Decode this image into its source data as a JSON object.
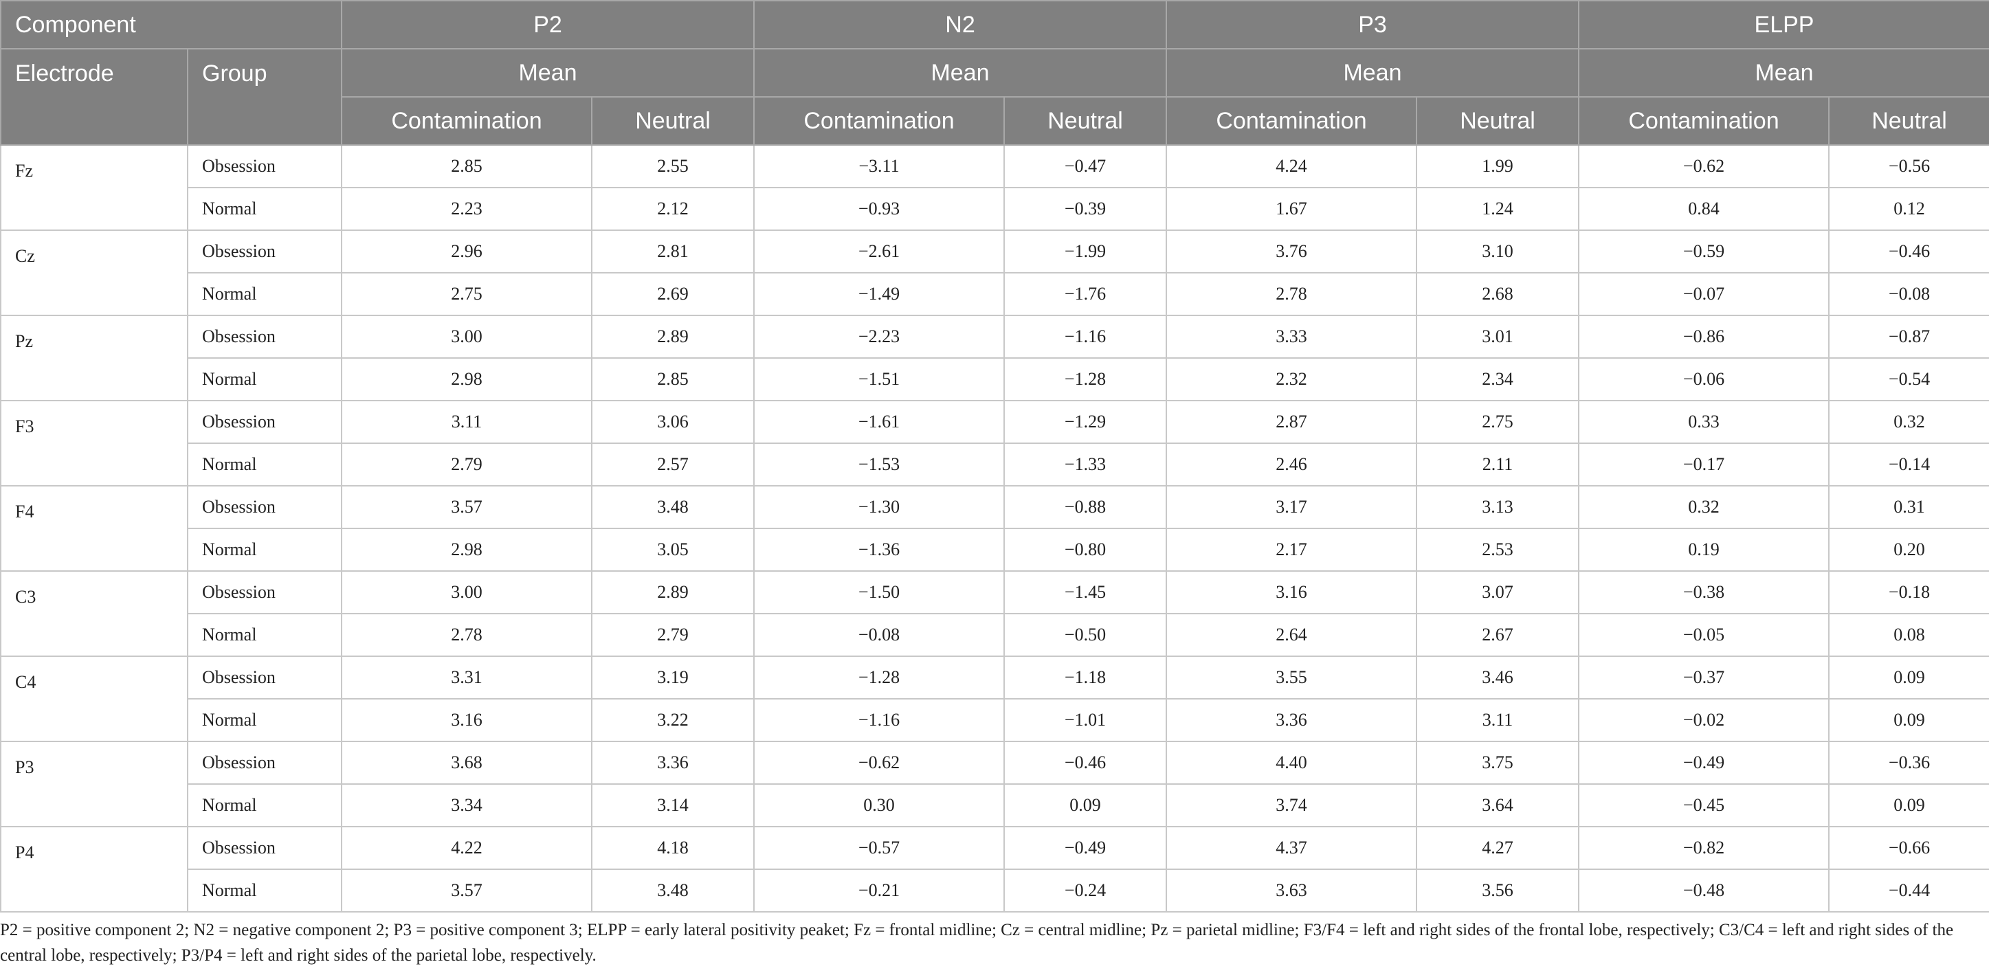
{
  "header": {
    "component_label": "Component",
    "electrode_label": "Electrode",
    "group_label": "Group",
    "components": [
      {
        "name": "P2",
        "stat": "Mean",
        "conditions": [
          "Contamination",
          "Neutral"
        ]
      },
      {
        "name": "N2",
        "stat": "Mean",
        "conditions": [
          "Contamination",
          "Neutral"
        ]
      },
      {
        "name": "P3",
        "stat": "Mean",
        "conditions": [
          "Contamination",
          "Neutral"
        ]
      },
      {
        "name": "ELPP",
        "stat": "Mean",
        "conditions": [
          "Contamination",
          "Neutral"
        ]
      }
    ]
  },
  "rows": [
    {
      "electrode": "Fz",
      "groups": [
        {
          "name": "Obsession",
          "values": [
            "2.85",
            "2.55",
            "−3.11",
            "−0.47",
            "4.24",
            "1.99",
            "−0.62",
            "−0.56"
          ]
        },
        {
          "name": "Normal",
          "values": [
            "2.23",
            "2.12",
            "−0.93",
            "−0.39",
            "1.67",
            "1.24",
            "0.84",
            "0.12"
          ]
        }
      ]
    },
    {
      "electrode": "Cz",
      "groups": [
        {
          "name": "Obsession",
          "values": [
            "2.96",
            "2.81",
            "−2.61",
            "−1.99",
            "3.76",
            "3.10",
            "−0.59",
            "−0.46"
          ]
        },
        {
          "name": "Normal",
          "values": [
            "2.75",
            "2.69",
            "−1.49",
            "−1.76",
            "2.78",
            "2.68",
            "−0.07",
            "−0.08"
          ]
        }
      ]
    },
    {
      "electrode": "Pz",
      "groups": [
        {
          "name": "Obsession",
          "values": [
            "3.00",
            "2.89",
            "−2.23",
            "−1.16",
            "3.33",
            "3.01",
            "−0.86",
            "−0.87"
          ]
        },
        {
          "name": "Normal",
          "values": [
            "2.98",
            "2.85",
            "−1.51",
            "−1.28",
            "2.32",
            "2.34",
            "−0.06",
            "−0.54"
          ]
        }
      ]
    },
    {
      "electrode": "F3",
      "groups": [
        {
          "name": "Obsession",
          "values": [
            "3.11",
            "3.06",
            "−1.61",
            "−1.29",
            "2.87",
            "2.75",
            "0.33",
            "0.32"
          ]
        },
        {
          "name": "Normal",
          "values": [
            "2.79",
            "2.57",
            "−1.53",
            "−1.33",
            "2.46",
            "2.11",
            "−0.17",
            "−0.14"
          ]
        }
      ]
    },
    {
      "electrode": "F4",
      "groups": [
        {
          "name": "Obsession",
          "values": [
            "3.57",
            "3.48",
            "−1.30",
            "−0.88",
            "3.17",
            "3.13",
            "0.32",
            "0.31"
          ]
        },
        {
          "name": "Normal",
          "values": [
            "2.98",
            "3.05",
            "−1.36",
            "−0.80",
            "2.17",
            "2.53",
            "0.19",
            "0.20"
          ]
        }
      ]
    },
    {
      "electrode": "C3",
      "groups": [
        {
          "name": "Obsession",
          "values": [
            "3.00",
            "2.89",
            "−1.50",
            "−1.45",
            "3.16",
            "3.07",
            "−0.38",
            "−0.18"
          ]
        },
        {
          "name": "Normal",
          "values": [
            "2.78",
            "2.79",
            "−0.08",
            "−0.50",
            "2.64",
            "2.67",
            "−0.05",
            "0.08"
          ]
        }
      ]
    },
    {
      "electrode": "C4",
      "groups": [
        {
          "name": "Obsession",
          "values": [
            "3.31",
            "3.19",
            "−1.28",
            "−1.18",
            "3.55",
            "3.46",
            "−0.37",
            "0.09"
          ]
        },
        {
          "name": "Normal",
          "values": [
            "3.16",
            "3.22",
            "−1.16",
            "−1.01",
            "3.36",
            "3.11",
            "−0.02",
            "0.09"
          ]
        }
      ]
    },
    {
      "electrode": "P3",
      "groups": [
        {
          "name": "Obsession",
          "values": [
            "3.68",
            "3.36",
            "−0.62",
            "−0.46",
            "4.40",
            "3.75",
            "−0.49",
            "−0.36"
          ]
        },
        {
          "name": "Normal",
          "values": [
            "3.34",
            "3.14",
            "0.30",
            "0.09",
            "3.74",
            "3.64",
            "−0.45",
            "0.09"
          ]
        }
      ]
    },
    {
      "electrode": "P4",
      "groups": [
        {
          "name": "Obsession",
          "values": [
            "4.22",
            "4.18",
            "−0.57",
            "−0.49",
            "4.37",
            "4.27",
            "−0.82",
            "−0.66"
          ]
        },
        {
          "name": "Normal",
          "values": [
            "3.57",
            "3.48",
            "−0.21",
            "−0.24",
            "3.63",
            "3.56",
            "−0.48",
            "−0.44"
          ]
        }
      ]
    }
  ],
  "footnote": "P2 = positive component 2; N2 = negative component 2; P3 = positive component 3; ELPP = early lateral positivity peaket; Fz = frontal midline; Cz = central midline; Pz = parietal midline; F3/F4 = left and right sides of the frontal lobe, respectively; C3/C4 = left and right sides of the central lobe, respectively; P3/P4 = left and right sides of the parietal lobe, respectively."
}
